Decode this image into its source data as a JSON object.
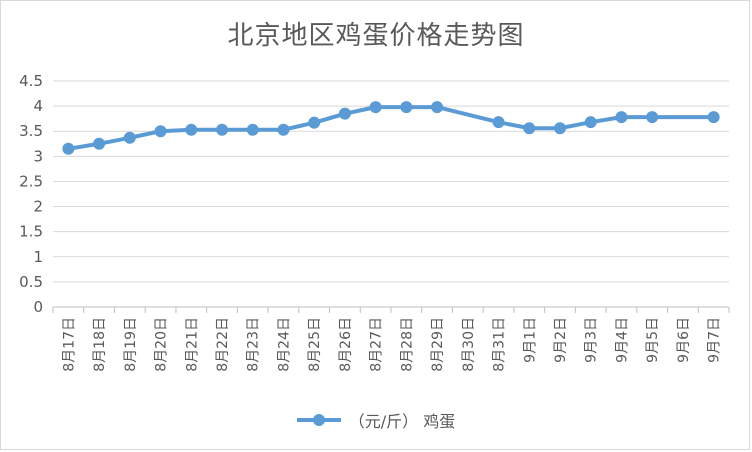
{
  "chart_data": {
    "type": "line",
    "title": "北京地区鸡蛋价格走势图",
    "categories": [
      "8月17日",
      "8月18日",
      "8月19日",
      "8月20日",
      "8月21日",
      "8月22日",
      "8月23日",
      "8月24日",
      "8月25日",
      "8月26日",
      "8月27日",
      "8月28日",
      "8月29日",
      "8月30日",
      "8月31日",
      "9月1日",
      "9月2日",
      "9月3日",
      "9月4日",
      "9月5日",
      "9月6日",
      "9月7日"
    ],
    "series": [
      {
        "name": "（元/斤） 鸡蛋",
        "values": [
          3.15,
          3.25,
          3.37,
          3.5,
          3.53,
          3.53,
          3.53,
          3.53,
          3.67,
          3.85,
          3.98,
          3.98,
          3.98,
          null,
          3.68,
          3.56,
          3.56,
          3.68,
          3.78,
          3.78,
          null,
          3.78
        ],
        "color": "#5b9bd5"
      }
    ],
    "yticks": [
      "0",
      "0.5",
      "1",
      "1.5",
      "2",
      "2.5",
      "3",
      "3.5",
      "4",
      "4.5"
    ],
    "ylim": [
      0,
      4.5
    ],
    "grid": true,
    "legend_position": "bottom"
  }
}
